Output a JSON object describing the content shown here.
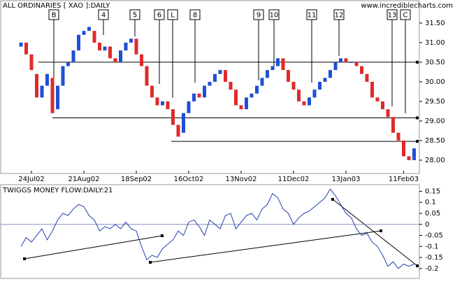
{
  "chart_data": [
    {
      "type": "candlestick",
      "title": "ALL ORDINARIES [ XAO ]:DAILY",
      "watermark": "www.incrediblecharts.com",
      "categories": [
        null,
        null,
        "24Jul02",
        null,
        null,
        null,
        null,
        null,
        null,
        null,
        null,
        null,
        "21Aug02",
        null,
        null,
        null,
        null,
        null,
        null,
        null,
        null,
        null,
        "18Sep02",
        null,
        null,
        null,
        null,
        null,
        null,
        null,
        null,
        null,
        "16Oct02",
        null,
        null,
        null,
        null,
        null,
        null,
        null,
        null,
        null,
        "13Nov02",
        null,
        null,
        null,
        null,
        null,
        null,
        null,
        null,
        null,
        "11Dec02",
        null,
        null,
        null,
        null,
        null,
        null,
        null,
        null,
        null,
        "13Jan03",
        null,
        null,
        null,
        null,
        null,
        null,
        null,
        null,
        null,
        null,
        "11Feb03",
        null,
        null
      ],
      "open": [
        30.9,
        31.0,
        30.7,
        30.2,
        29.6,
        29.9,
        30.1,
        29.3,
        29.9,
        30.4,
        30.5,
        30.8,
        31.2,
        31.3,
        31.3,
        31.0,
        30.8,
        30.9,
        30.6,
        30.5,
        30.8,
        31.0,
        31.1,
        30.7,
        30.4,
        29.9,
        29.6,
        29.4,
        29.5,
        29.3,
        28.9,
        28.7,
        29.2,
        29.5,
        29.7,
        29.6,
        29.9,
        30.0,
        30.2,
        30.3,
        30.0,
        29.8,
        29.4,
        29.3,
        29.6,
        29.7,
        29.9,
        30.1,
        30.3,
        30.4,
        30.6,
        30.3,
        30.0,
        29.8,
        29.5,
        29.4,
        29.6,
        29.8,
        30.0,
        30.1,
        30.3,
        30.5,
        30.6,
        30.5,
        30.5,
        30.4,
        30.2,
        30.0,
        29.6,
        29.5,
        29.3,
        29.1,
        28.7,
        28.5,
        28.1,
        28.0
      ],
      "close": [
        31.0,
        30.7,
        30.3,
        29.6,
        29.9,
        30.2,
        29.2,
        29.9,
        30.4,
        30.5,
        30.8,
        31.2,
        31.3,
        31.4,
        31.0,
        30.8,
        30.9,
        30.6,
        30.5,
        30.8,
        31.0,
        31.1,
        30.7,
        30.4,
        29.9,
        29.6,
        29.4,
        29.5,
        29.3,
        28.9,
        28.6,
        29.2,
        29.5,
        29.7,
        29.6,
        29.9,
        30.0,
        30.2,
        30.3,
        30.0,
        29.8,
        29.4,
        29.3,
        29.6,
        29.7,
        29.9,
        30.1,
        30.3,
        30.4,
        30.6,
        30.3,
        30.0,
        29.8,
        29.5,
        29.4,
        29.6,
        29.8,
        30.0,
        30.1,
        30.3,
        30.5,
        30.6,
        30.5,
        30.5,
        30.4,
        30.2,
        30.0,
        29.6,
        29.5,
        29.3,
        29.1,
        28.7,
        28.5,
        28.1,
        28.0,
        28.3
      ],
      "up_color": "#1f4fd6",
      "down_color": "#e02a2a",
      "ylim": [
        27.66,
        32.07
      ],
      "yticks": [
        {
          "value": 28,
          "label": "28.00"
        },
        {
          "value": 28.5,
          "label": "28.50"
        },
        {
          "value": 29,
          "label": "29.00"
        },
        {
          "value": 29.5,
          "label": "29.50"
        },
        {
          "value": 30,
          "label": "30.00"
        },
        {
          "value": 30.5,
          "label": "30.50"
        },
        {
          "value": 31,
          "label": "31.00"
        },
        {
          "value": 31.5,
          "label": "31.50"
        }
      ],
      "levels": [
        30.5,
        29.08,
        28.48
      ],
      "annotations": [
        "B",
        "4",
        "5",
        "6",
        "L",
        "8",
        "9",
        "10",
        "11",
        "12",
        "13",
        "C"
      ]
    },
    {
      "type": "line",
      "title": "TWIGGS MONEY FLOW:DAILY:21",
      "values": [
        -0.1,
        -0.06,
        -0.08,
        -0.05,
        -0.02,
        -0.07,
        -0.03,
        0.02,
        0.05,
        0.04,
        0.07,
        0.09,
        0.08,
        0.04,
        0.02,
        -0.03,
        -0.01,
        -0.02,
        0.0,
        -0.02,
        0.01,
        -0.02,
        -0.03,
        -0.1,
        -0.16,
        -0.14,
        -0.15,
        -0.11,
        -0.09,
        -0.07,
        -0.03,
        -0.05,
        0.01,
        0.02,
        -0.01,
        -0.05,
        0.02,
        0.0,
        -0.02,
        0.04,
        0.05,
        -0.02,
        0.01,
        0.04,
        0.05,
        0.02,
        0.07,
        0.09,
        0.14,
        0.12,
        0.07,
        0.05,
        0.0,
        0.03,
        0.05,
        0.06,
        0.08,
        0.1,
        0.12,
        0.16,
        0.13,
        0.09,
        0.05,
        0.03,
        -0.02,
        -0.05,
        -0.04,
        -0.08,
        -0.1,
        -0.14,
        -0.19,
        -0.17,
        -0.2,
        -0.18,
        -0.19,
        -0.18
      ],
      "color": "#1f3fb0",
      "ylim": [
        -0.245,
        0.18
      ],
      "yticks": [
        -0.2,
        -0.15,
        -0.1,
        -0.05,
        0,
        0.05,
        0.1,
        0.15
      ]
    }
  ]
}
